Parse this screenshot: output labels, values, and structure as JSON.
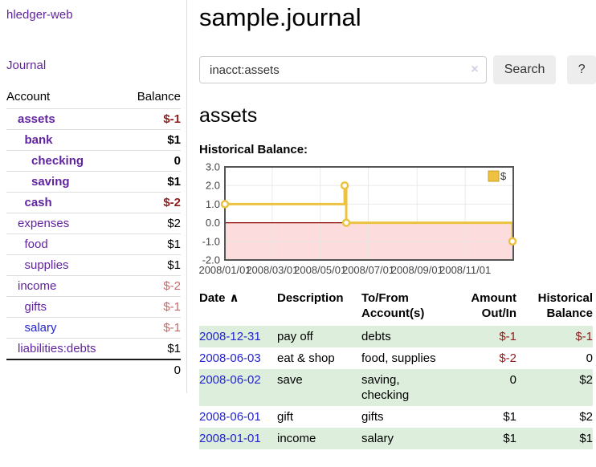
{
  "app": {
    "brand": "hledger-web",
    "nav_journal": "Journal"
  },
  "header": {
    "title": "sample.journal"
  },
  "search": {
    "value": "inacct:assets",
    "clear_icon": "×",
    "button_label": "Search",
    "help_label": "?"
  },
  "account_page": {
    "heading": "assets",
    "chart_label": "Historical Balance:"
  },
  "sidebar": {
    "accounts_header": {
      "account": "Account",
      "balance": "Balance"
    },
    "accounts": [
      {
        "name": "assets",
        "depth": 0,
        "bold": true,
        "balance": "$-1",
        "balance_style": "neg-strong"
      },
      {
        "name": "bank",
        "depth": 1,
        "bold": true,
        "balance": "$1",
        "balance_style": "normal"
      },
      {
        "name": "checking",
        "depth": 2,
        "bold": true,
        "balance": "0",
        "balance_style": "normal"
      },
      {
        "name": "saving",
        "depth": 2,
        "bold": true,
        "balance": "$1",
        "balance_style": "normal"
      },
      {
        "name": "cash",
        "depth": 1,
        "bold": true,
        "balance": "$-2",
        "balance_style": "neg-strong"
      },
      {
        "name": "expenses",
        "depth": 0,
        "bold": false,
        "balance": "$2",
        "balance_style": "normal"
      },
      {
        "name": "food",
        "depth": 1,
        "bold": false,
        "balance": "$1",
        "balance_style": "normal"
      },
      {
        "name": "supplies",
        "depth": 1,
        "bold": false,
        "balance": "$1",
        "balance_style": "normal"
      },
      {
        "name": "income",
        "depth": 0,
        "bold": false,
        "balance": "$-2",
        "balance_style": "neg-soft"
      },
      {
        "name": "gifts",
        "depth": 1,
        "bold": false,
        "balance": "$-1",
        "balance_style": "neg-soft"
      },
      {
        "name": "salary",
        "depth": 1,
        "bold": false,
        "link_color": "blue",
        "balance": "$-1",
        "balance_style": "neg-soft"
      },
      {
        "name": "liabilities:debts",
        "depth": 0,
        "bold": false,
        "balance": "$1",
        "balance_style": "normal"
      }
    ],
    "total": "0"
  },
  "chart_data": {
    "type": "line",
    "title": "Historical Balance:",
    "series": [
      {
        "name": "$",
        "color": "#edc240",
        "step": true,
        "points": [
          [
            "2008-01-01",
            1
          ],
          [
            "2008-06-01",
            2
          ],
          [
            "2008-06-03",
            0
          ],
          [
            "2008-12-31",
            -1
          ]
        ]
      }
    ],
    "ylim": [
      -2,
      3
    ],
    "yticks": [
      3.0,
      2.0,
      1.0,
      0.0,
      -1.0,
      -2.0
    ],
    "xticks": [
      "2008/01/01",
      "2008/03/01",
      "2008/05/01",
      "2008/07/01",
      "2008/09/01",
      "2008/11/01"
    ],
    "xrange": [
      "2008-01-01",
      "2009-01-01"
    ],
    "legend_position": "top-right",
    "grid": true,
    "negative_region_color": "#fcdcdc",
    "zero_line_color": "#8b0000"
  },
  "register": {
    "columns": {
      "date": "Date",
      "sort_icon": "∧",
      "description": "Description",
      "tofrom": "To/From Account(s)",
      "amount": "Amount Out/In",
      "balance": "Historical Balance"
    },
    "rows": [
      {
        "date": "2008-12-31",
        "description": "pay off",
        "accounts": "debts",
        "amount": "$-1",
        "amount_neg": true,
        "balance": "$-1",
        "balance_neg": true
      },
      {
        "date": "2008-06-03",
        "description": "eat & shop",
        "accounts": "food, supplies",
        "amount": "$-2",
        "amount_neg": true,
        "balance": "0",
        "balance_neg": false
      },
      {
        "date": "2008-06-02",
        "description": "save",
        "accounts": "saving, checking",
        "amount": "0",
        "amount_neg": false,
        "balance": "$2",
        "balance_neg": false
      },
      {
        "date": "2008-06-01",
        "description": "gift",
        "accounts": "gifts",
        "amount": "$1",
        "amount_neg": false,
        "balance": "$2",
        "balance_neg": false
      },
      {
        "date": "2008-01-01",
        "description": "income",
        "accounts": "salary",
        "amount": "$1",
        "amount_neg": false,
        "balance": "$1",
        "balance_neg": false
      }
    ]
  },
  "colors": {
    "link_purple": "#61249f",
    "link_blue": "#2323d3",
    "negative": "#8f1d1d",
    "negative_soft": "#c46a6a",
    "row_stripe_green": "#ddeedd",
    "series_gold": "#edc240",
    "chart_negative_region": "#fcdcdc",
    "chart_zero_line": "#8b0000",
    "chart_border": "#555555",
    "grid": "#e6e6e6",
    "button_bg": "#ededed"
  }
}
